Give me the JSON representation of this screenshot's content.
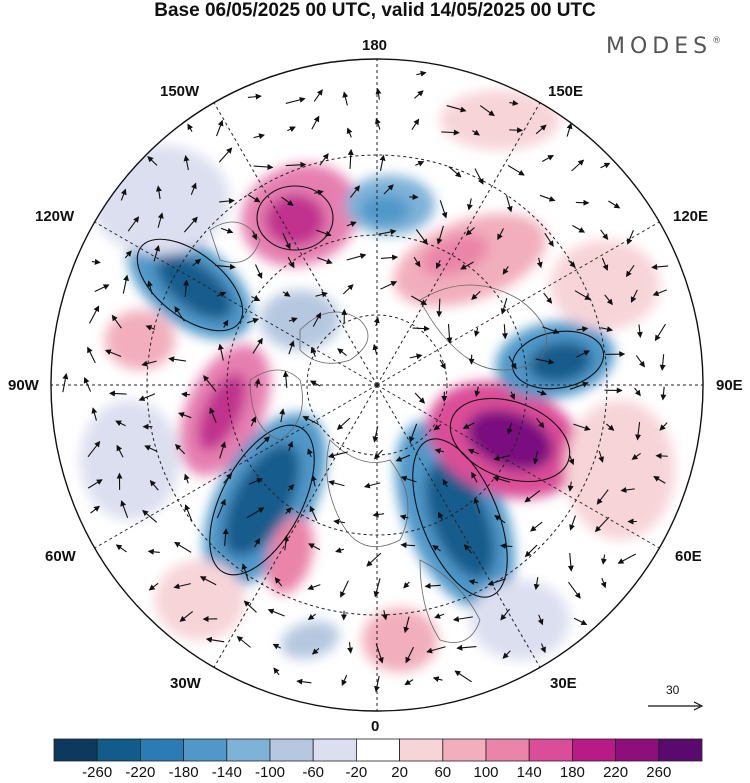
{
  "title": "Base 06/05/2025 00 UTC, valid 14/05/2025 00 UTC",
  "brand": "MODES",
  "brand_mark": "®",
  "longitude_labels": {
    "top": "180",
    "bottom": "0",
    "left": "90W",
    "right": "90E",
    "upper_left_1": "150W",
    "upper_left_2": "120W",
    "upper_right_1": "150E",
    "upper_right_2": "120E",
    "lower_left_1": "60W",
    "lower_left_2": "30W",
    "lower_right_1": "60E",
    "lower_right_2": "30E"
  },
  "vector_scale_label": "30",
  "colorbar": {
    "labels": [
      "-260",
      "-220",
      "-180",
      "-140",
      "-100",
      "-60",
      "-20",
      "20",
      "60",
      "100",
      "140",
      "180",
      "220",
      "260"
    ],
    "colors": [
      "#0d3a5c",
      "#125c8c",
      "#2b7bb5",
      "#4f98c9",
      "#7fb2d8",
      "#b6c8e0",
      "#dcdff0",
      "#ffffff",
      "#f7d4d8",
      "#f2aebc",
      "#ea84a8",
      "#db4d98",
      "#b81a86",
      "#8e0e7c",
      "#5a0a6e"
    ]
  },
  "icons": [
    "wind-vector-arrow",
    "reference-vector-arrow"
  ]
}
